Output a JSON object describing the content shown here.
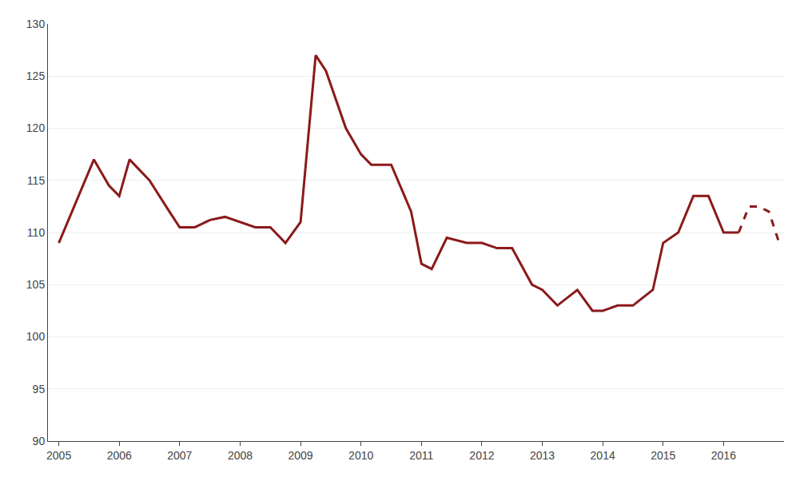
{
  "chart_data": {
    "type": "line",
    "xlim": [
      2004.82,
      2017.0
    ],
    "xticks": [
      2005,
      2006,
      2007,
      2008,
      2009,
      2010,
      2011,
      2012,
      2013,
      2014,
      2015,
      2016
    ],
    "ylim": [
      90,
      130
    ],
    "yticks": [
      90,
      95,
      100,
      105,
      110,
      115,
      120,
      125,
      130
    ],
    "grid": "y",
    "series": [
      {
        "color": "#8b1a1a",
        "line_style": "solid",
        "x": [
          2005.0,
          2005.25,
          2005.58,
          2005.83,
          2006.0,
          2006.17,
          2006.5,
          2006.83,
          2007.0,
          2007.25,
          2007.5,
          2007.75,
          2008.0,
          2008.25,
          2008.5,
          2008.75,
          2009.0,
          2009.25,
          2009.42,
          2009.75,
          2010.0,
          2010.17,
          2010.5,
          2010.83,
          2011.0,
          2011.17,
          2011.42,
          2011.75,
          2012.0,
          2012.25,
          2012.5,
          2012.83,
          2013.0,
          2013.25,
          2013.58,
          2013.83,
          2014.0,
          2014.25,
          2014.5,
          2014.83,
          2015.0,
          2015.25,
          2015.5,
          2015.75,
          2016.0,
          2016.25
        ],
        "values": [
          109.0,
          112.5,
          117.0,
          114.5,
          113.5,
          117.0,
          115.0,
          112.0,
          110.5,
          110.5,
          111.2,
          111.5,
          111.0,
          110.5,
          110.5,
          109.0,
          111.0,
          127.0,
          125.5,
          120.0,
          117.5,
          116.5,
          116.5,
          112.0,
          107.0,
          106.5,
          109.5,
          109.0,
          109.0,
          108.5,
          108.5,
          105.0,
          104.5,
          103.0,
          104.5,
          102.5,
          102.5,
          103.0,
          103.0,
          104.5,
          109.0,
          110.0,
          113.5,
          113.5,
          110.0,
          110.0
        ]
      },
      {
        "color": "#8b1a1a",
        "line_style": "dashed",
        "x": [
          2016.25,
          2016.42,
          2016.58,
          2016.75,
          2016.92
        ],
        "values": [
          110.0,
          112.5,
          112.5,
          112.0,
          109.0
        ]
      }
    ]
  }
}
